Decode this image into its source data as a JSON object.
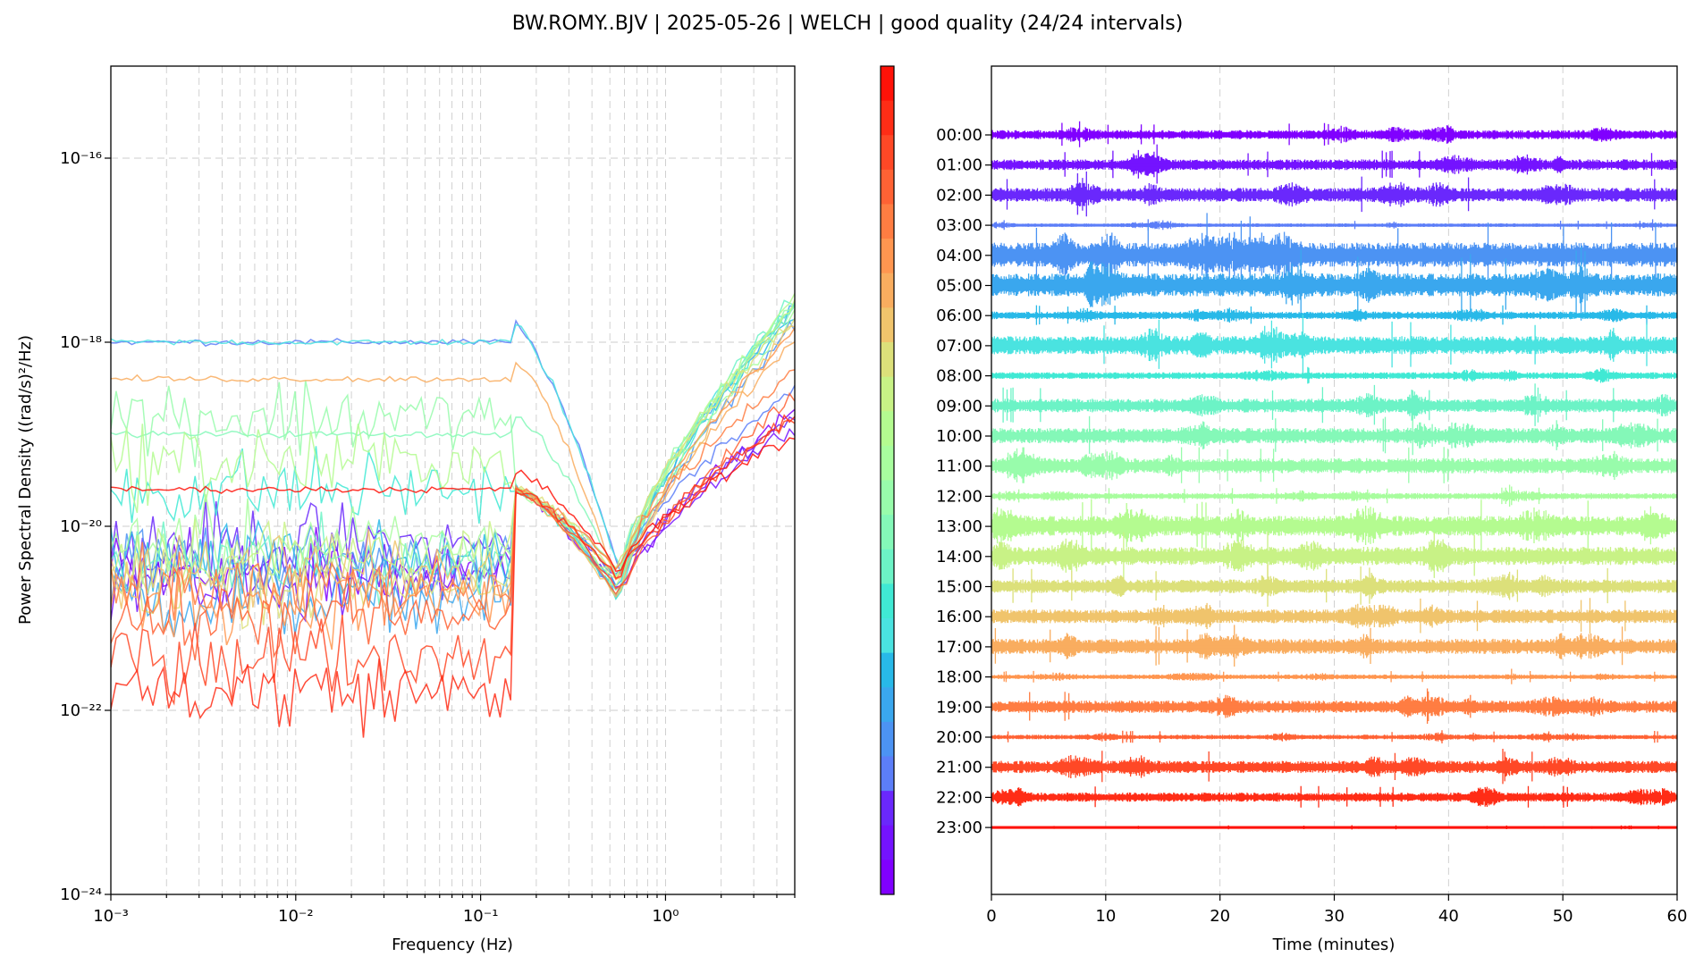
{
  "title": "BW.ROMY..BJV | 2025-05-26 | WELCH | good quality (24/24 intervals)",
  "chart_data": [
    {
      "type": "line",
      "xlabel": "Frequency (Hz)",
      "ylabel": "Power Spectral Density ((rad/s)²/Hz)",
      "xscale": "log",
      "yscale": "log",
      "xlim": [
        0.001,
        5
      ],
      "ylim": [
        1e-24,
        1e-15
      ],
      "x_tick_labels": [
        "10⁻³",
        "10⁻²",
        "10⁻¹",
        "10⁰"
      ],
      "y_tick_labels": [
        "10⁻²⁴",
        "10⁻²²",
        "10⁻²⁰",
        "10⁻¹⁸",
        "10⁻¹⁶"
      ],
      "grid": true,
      "colormap": "rainbow",
      "series_count": 24,
      "series": [
        {
          "hour": 0,
          "color": "#8000ff",
          "low_freq_level": -20.5,
          "high_freq_level": -18.7
        },
        {
          "hour": 1,
          "color": "#7413ff",
          "low_freq_level": -20.6,
          "high_freq_level": -18.9
        },
        {
          "hour": 2,
          "color": "#6a28fc",
          "low_freq_level": -20.2,
          "high_freq_level": -18.8
        },
        {
          "hour": 3,
          "color": "#5c7ef8",
          "low_freq_level": -18.0,
          "high_freq_level": -18.5
        },
        {
          "hour": 4,
          "color": "#4c93f3",
          "low_freq_level": -20.4,
          "high_freq_level": -17.8
        },
        {
          "hour": 5,
          "color": "#3aa7ee",
          "low_freq_level": -20.8,
          "high_freq_level": -17.6
        },
        {
          "hour": 6,
          "color": "#28b9e8",
          "low_freq_level": -20.4,
          "high_freq_level": -17.7
        },
        {
          "hour": 7,
          "color": "#4ae3e0",
          "low_freq_level": -18.0,
          "high_freq_level": -17.6
        },
        {
          "hour": 8,
          "color": "#40e9d4",
          "low_freq_level": -19.6,
          "high_freq_level": -17.6
        },
        {
          "hour": 9,
          "color": "#6cf3c6",
          "low_freq_level": -20.4,
          "high_freq_level": -17.5
        },
        {
          "hour": 10,
          "color": "#84f8b8",
          "low_freq_level": -19.0,
          "high_freq_level": -17.6
        },
        {
          "hour": 11,
          "color": "#98fcab",
          "low_freq_level": -18.8,
          "high_freq_level": -17.6
        },
        {
          "hour": 12,
          "color": "#a8fd9e",
          "low_freq_level": -20.2,
          "high_freq_level": -17.7
        },
        {
          "hour": 13,
          "color": "#b4fb90",
          "low_freq_level": -19.3,
          "high_freq_level": -17.5
        },
        {
          "hour": 14,
          "color": "#c8f286",
          "low_freq_level": -20.3,
          "high_freq_level": -17.6
        },
        {
          "hour": 15,
          "color": "#dce07a",
          "low_freq_level": -20.6,
          "high_freq_level": -17.7
        },
        {
          "hour": 16,
          "color": "#f0c46c",
          "low_freq_level": -20.5,
          "high_freq_level": -17.8
        },
        {
          "hour": 17,
          "color": "#f9ad5f",
          "low_freq_level": -18.4,
          "high_freq_level": -18.0
        },
        {
          "hour": 18,
          "color": "#ff9650",
          "low_freq_level": -20.8,
          "high_freq_level": -17.9
        },
        {
          "hour": 19,
          "color": "#ff7d42",
          "low_freq_level": -20.7,
          "high_freq_level": -18.3
        },
        {
          "hour": 20,
          "color": "#ff6234",
          "low_freq_level": -21.0,
          "high_freq_level": -18.6
        },
        {
          "hour": 21,
          "color": "#ff4826",
          "low_freq_level": -21.4,
          "high_freq_level": -18.8
        },
        {
          "hour": 22,
          "color": "#ff2d16",
          "low_freq_level": -21.8,
          "high_freq_level": -18.8
        },
        {
          "hour": 23,
          "color": "#ff1208",
          "low_freq_level": -19.6,
          "high_freq_level": -19.0
        }
      ]
    },
    {
      "type": "line",
      "xlabel": "Time (minutes)",
      "xlim": [
        0,
        60
      ],
      "x_ticks": [
        0,
        10,
        20,
        30,
        40,
        50,
        60
      ],
      "grid": true,
      "colormap": "rainbow",
      "traces": [
        {
          "label": "00:00",
          "color": "#8000ff",
          "amplitude": 0.3
        },
        {
          "label": "01:00",
          "color": "#7413ff",
          "amplitude": 0.35
        },
        {
          "label": "02:00",
          "color": "#6a28fc",
          "amplitude": 0.45
        },
        {
          "label": "03:00",
          "color": "#5c7ef8",
          "amplitude": 0.12
        },
        {
          "label": "04:00",
          "color": "#4c93f3",
          "amplitude": 0.8
        },
        {
          "label": "05:00",
          "color": "#3aa7ee",
          "amplitude": 0.75
        },
        {
          "label": "06:00",
          "color": "#28b9e8",
          "amplitude": 0.25
        },
        {
          "label": "07:00",
          "color": "#4ae3e0",
          "amplitude": 0.6
        },
        {
          "label": "08:00",
          "color": "#40e9d4",
          "amplitude": 0.22
        },
        {
          "label": "09:00",
          "color": "#6cf3c6",
          "amplitude": 0.45
        },
        {
          "label": "10:00",
          "color": "#84f8b8",
          "amplitude": 0.5
        },
        {
          "label": "11:00",
          "color": "#98fcab",
          "amplitude": 0.5
        },
        {
          "label": "12:00",
          "color": "#a8fd9e",
          "amplitude": 0.2
        },
        {
          "label": "13:00",
          "color": "#b4fb90",
          "amplitude": 0.65
        },
        {
          "label": "14:00",
          "color": "#c8f286",
          "amplitude": 0.6
        },
        {
          "label": "15:00",
          "color": "#dce07a",
          "amplitude": 0.45
        },
        {
          "label": "16:00",
          "color": "#f0c46c",
          "amplitude": 0.45
        },
        {
          "label": "17:00",
          "color": "#f9ad5f",
          "amplitude": 0.5
        },
        {
          "label": "18:00",
          "color": "#ff9650",
          "amplitude": 0.15
        },
        {
          "label": "19:00",
          "color": "#ff7d42",
          "amplitude": 0.4
        },
        {
          "label": "20:00",
          "color": "#ff6234",
          "amplitude": 0.15
        },
        {
          "label": "21:00",
          "color": "#ff4826",
          "amplitude": 0.4
        },
        {
          "label": "22:00",
          "color": "#ff2d16",
          "amplitude": 0.3
        },
        {
          "label": "23:00",
          "color": "#ff1208",
          "amplitude": 0.05
        }
      ]
    }
  ],
  "colorbar": {
    "colormap": "rainbow",
    "min": 0,
    "max": 23
  }
}
